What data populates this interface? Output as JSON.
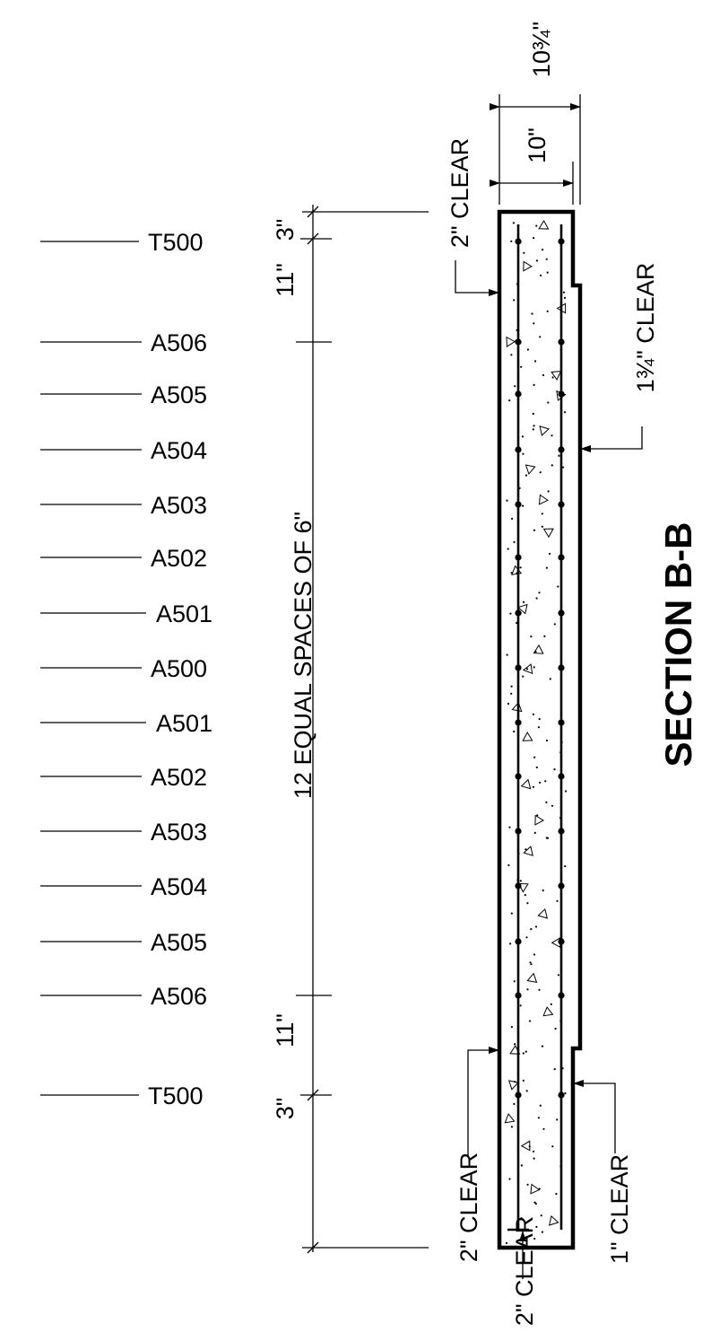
{
  "section_title": "SECTION B-B",
  "bar_marks": [
    "T500",
    "A506",
    "A505",
    "A504",
    "A503",
    "A502",
    "A501",
    "A500",
    "A501",
    "A502",
    "A503",
    "A504",
    "A505",
    "A506",
    "T500"
  ],
  "dimensions": {
    "top_cover": "3\"",
    "top_edge_space": "11\"",
    "equal_spaces": "12 EQUAL SPACES OF 6\"",
    "bottom_edge_space": "11\"",
    "bottom_cover": "3\"",
    "wall_thickness": "10\"",
    "overall_thickness": "10¾\""
  },
  "clear_notes": {
    "top_left": "2\" CLEAR",
    "right": "1¾\" CLEAR",
    "bottom_left": "2\" CLEAR",
    "bottom_center": "2\" CLEAR",
    "bottom_right": "1\" CLEAR"
  }
}
